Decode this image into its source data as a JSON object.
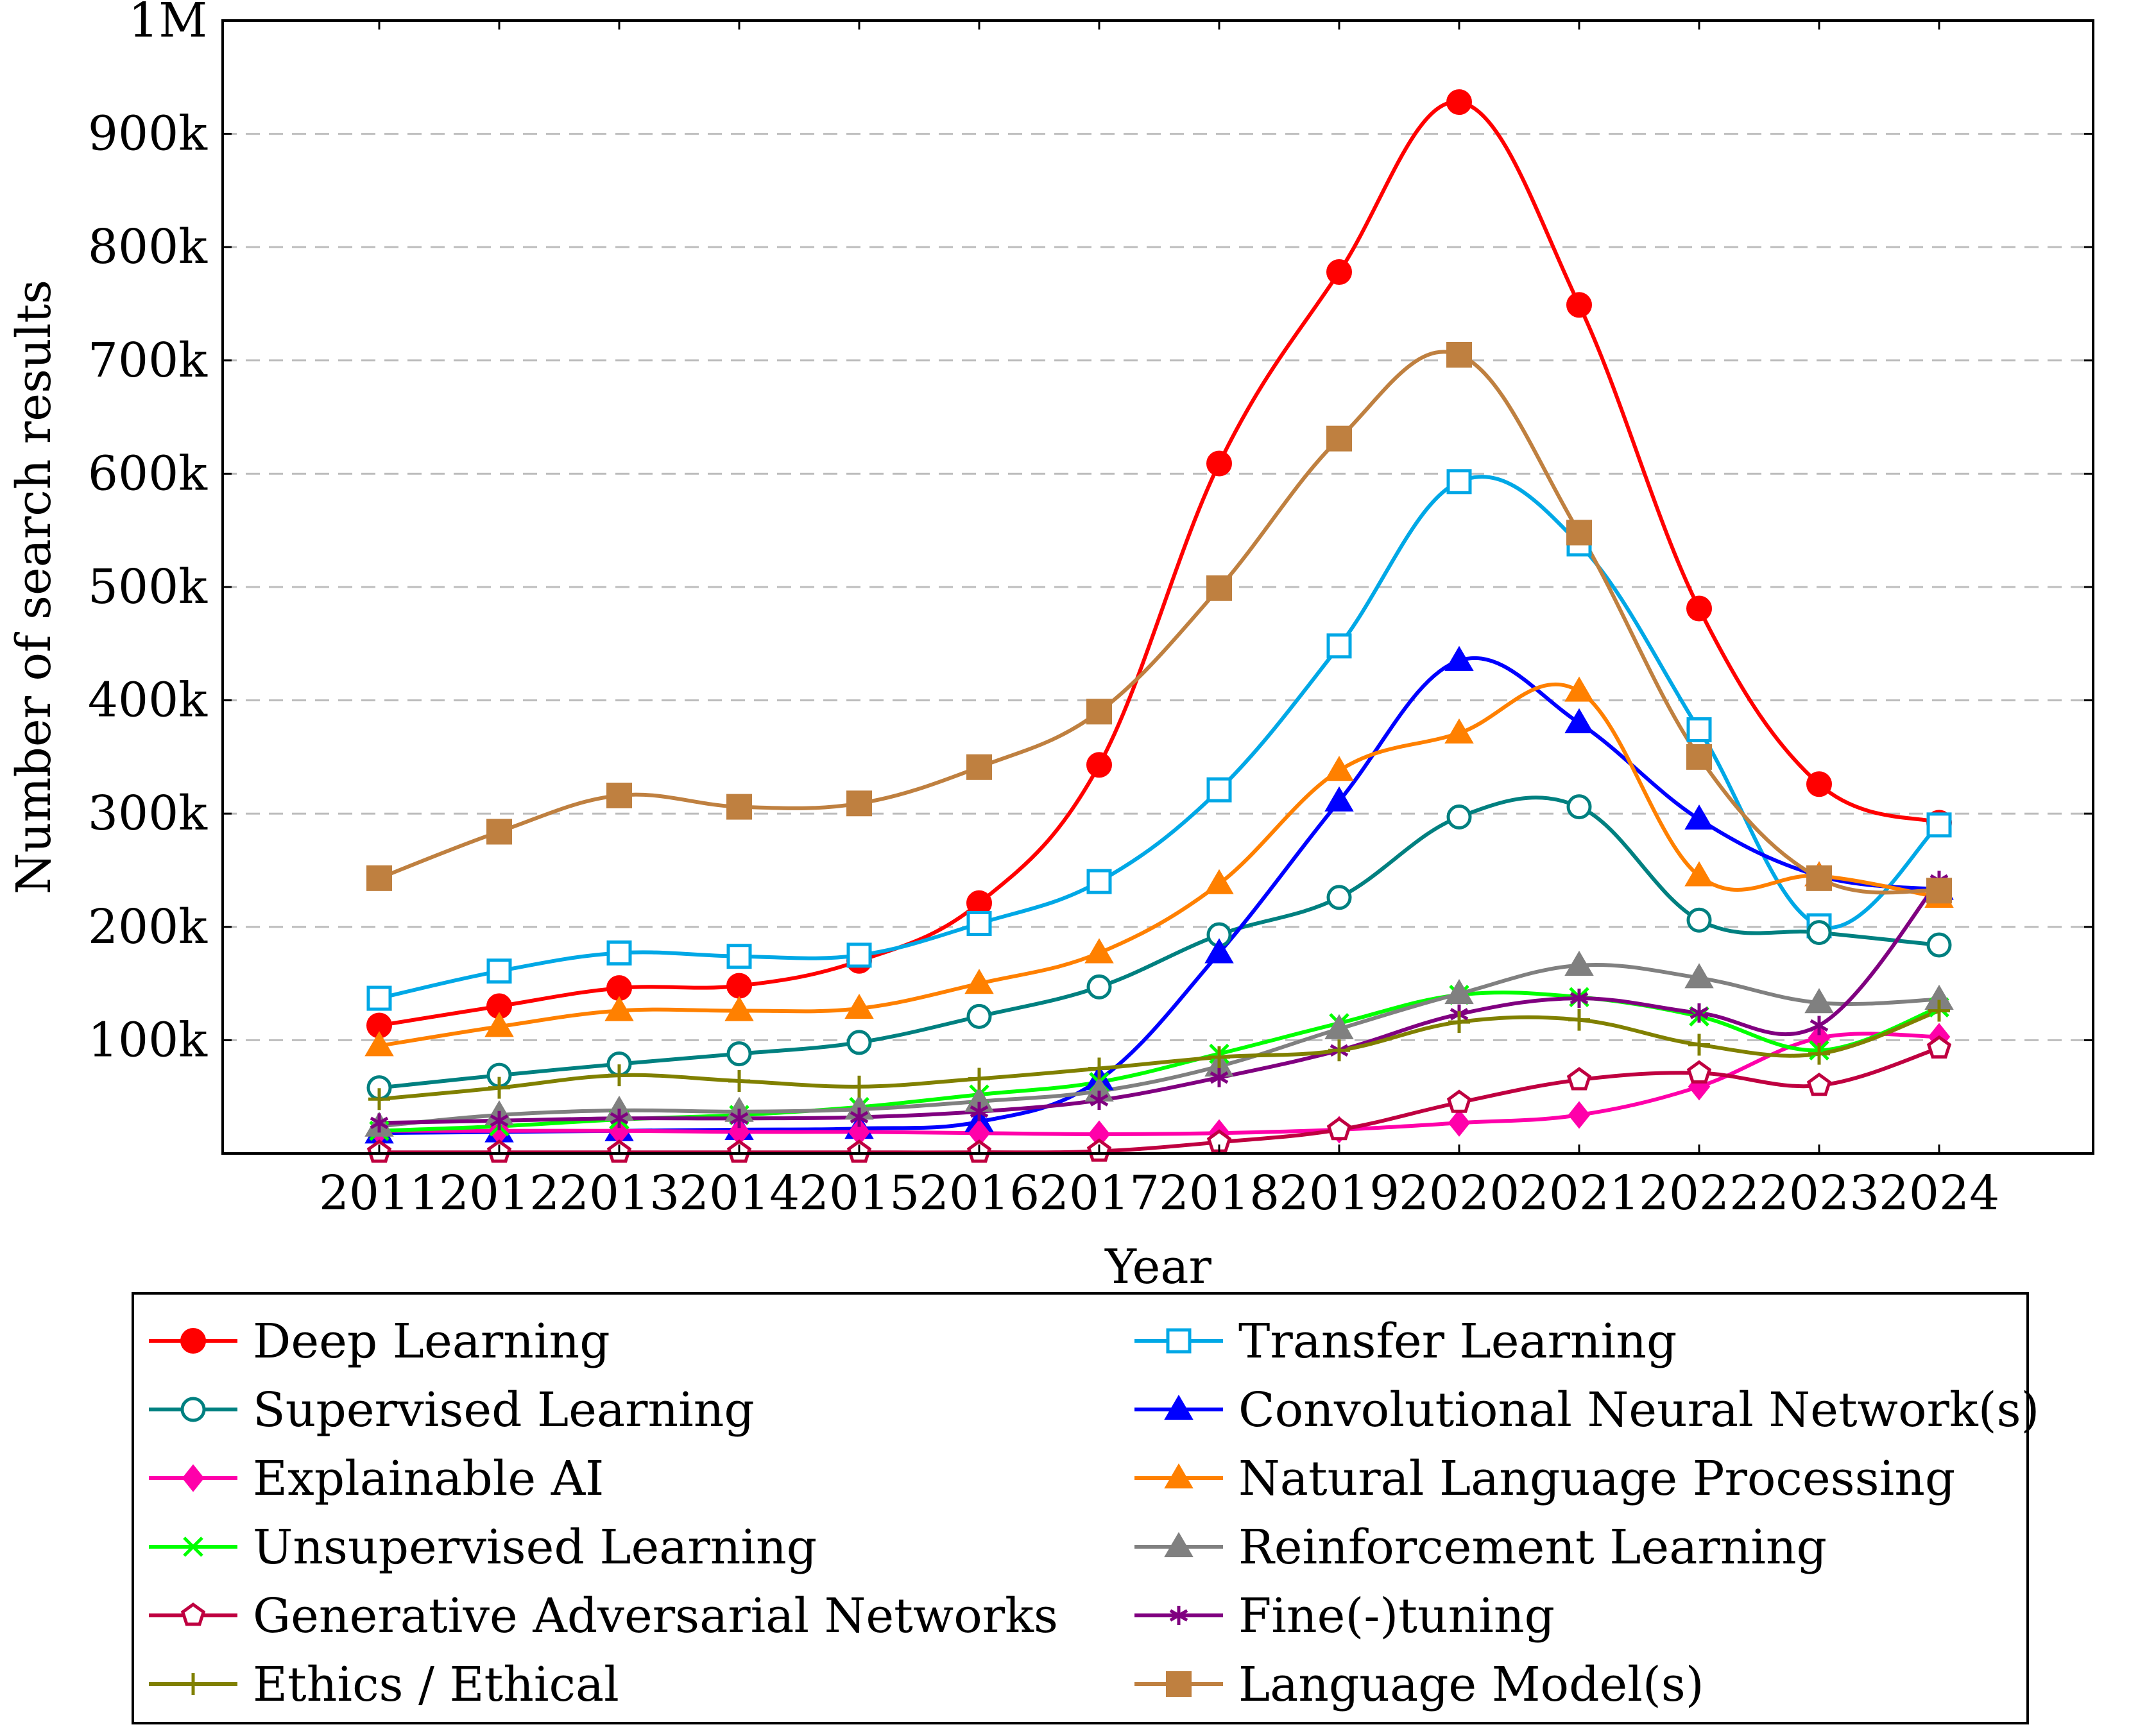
{
  "chart_data": {
    "type": "line",
    "xlabel": "Year",
    "ylabel": "Number of search results",
    "ylim": [
      0,
      1000000
    ],
    "yticks": [
      100000,
      200000,
      300000,
      400000,
      500000,
      600000,
      700000,
      800000,
      900000,
      1000000
    ],
    "ytick_labels": [
      "100k",
      "200k",
      "300k",
      "400k",
      "500k",
      "600k",
      "700k",
      "800k",
      "900k",
      "1M"
    ],
    "x": [
      2011,
      2012,
      2013,
      2014,
      2015,
      2016,
      2017,
      2018,
      2019,
      2020,
      2021,
      2022,
      2023,
      2024
    ],
    "x_labels": [
      "2011",
      "2012",
      "2013",
      "2014",
      "2015",
      "2016",
      "2017",
      "2018",
      "2019",
      "2020",
      "2021",
      "2022",
      "2023",
      "2024"
    ],
    "grid": "horizontal dashed",
    "legend_position": "bottom, two columns",
    "series": [
      {
        "name": "Deep Learning",
        "color": "#ff0000",
        "marker": "circle-filled",
        "values": [
          113000,
          130000,
          146000,
          148000,
          170000,
          221000,
          343000,
          609000,
          778000,
          928000,
          749000,
          481000,
          326000,
          292000
        ]
      },
      {
        "name": "Transfer Learning",
        "color": "#00a8e6",
        "marker": "square-open",
        "values": [
          137000,
          161000,
          177000,
          174000,
          175000,
          203000,
          240000,
          321000,
          448000,
          593000,
          538000,
          374000,
          201000,
          290000
        ]
      },
      {
        "name": "Supervised Learning",
        "color": "#008080",
        "marker": "circle-open",
        "values": [
          58000,
          69000,
          79000,
          88000,
          98000,
          121000,
          147000,
          193000,
          226000,
          297000,
          306000,
          206000,
          195000,
          184000
        ]
      },
      {
        "name": "Convolutional Neural Network(s)",
        "color": "#0000ff",
        "marker": "triangle-filled",
        "values": [
          18000,
          19000,
          20000,
          21000,
          22000,
          28000,
          65000,
          177000,
          311000,
          435000,
          380000,
          295000,
          245000,
          233000
        ]
      },
      {
        "name": "Explainable AI",
        "color": "#ff00aa",
        "marker": "diamond-filled",
        "values": [
          20000,
          20000,
          20000,
          19000,
          19000,
          18000,
          17000,
          18000,
          21000,
          27000,
          34000,
          59000,
          102000,
          103000
        ]
      },
      {
        "name": "Natural Language Processing",
        "color": "#ff8000",
        "marker": "triangle-filled",
        "values": [
          95000,
          112000,
          126000,
          126000,
          128000,
          150000,
          177000,
          238000,
          338000,
          371000,
          408000,
          245000,
          245000,
          226000
        ]
      },
      {
        "name": "Unsupervised Learning",
        "color": "#00ff00",
        "marker": "x",
        "values": [
          20000,
          24000,
          30000,
          34000,
          41000,
          52000,
          63000,
          88000,
          115000,
          140000,
          138000,
          121000,
          91000,
          129000
        ]
      },
      {
        "name": "Reinforcement Learning",
        "color": "#808080",
        "marker": "triangle-filled",
        "values": [
          24000,
          34000,
          38000,
          37000,
          39000,
          46000,
          55000,
          77000,
          110000,
          141000,
          166000,
          155000,
          133000,
          136000
        ]
      },
      {
        "name": "Generative Adversarial Networks",
        "color": "#bf0040",
        "marker": "pentagon-open",
        "values": [
          1000,
          1000,
          1000,
          1000,
          1000,
          1000,
          2000,
          10000,
          21000,
          45000,
          65000,
          71000,
          60000,
          93000
        ]
      },
      {
        "name": "Fine(-)tuning",
        "color": "#800080",
        "marker": "star",
        "values": [
          27000,
          29000,
          31000,
          31000,
          32000,
          37000,
          47000,
          67000,
          91000,
          123000,
          137000,
          124000,
          113000,
          241000
        ]
      },
      {
        "name": "Ethics / Ethical",
        "color": "#808000",
        "marker": "plus",
        "values": [
          48000,
          58000,
          69000,
          64000,
          59000,
          66000,
          75000,
          85000,
          91000,
          116000,
          118000,
          96000,
          88000,
          126000
        ]
      },
      {
        "name": "Language Model(s)",
        "color": "#bf8040",
        "marker": "square-filled",
        "values": [
          243000,
          284000,
          316000,
          306000,
          309000,
          341000,
          390000,
          499000,
          631000,
          705000,
          548000,
          350000,
          243000,
          232000
        ]
      }
    ]
  }
}
